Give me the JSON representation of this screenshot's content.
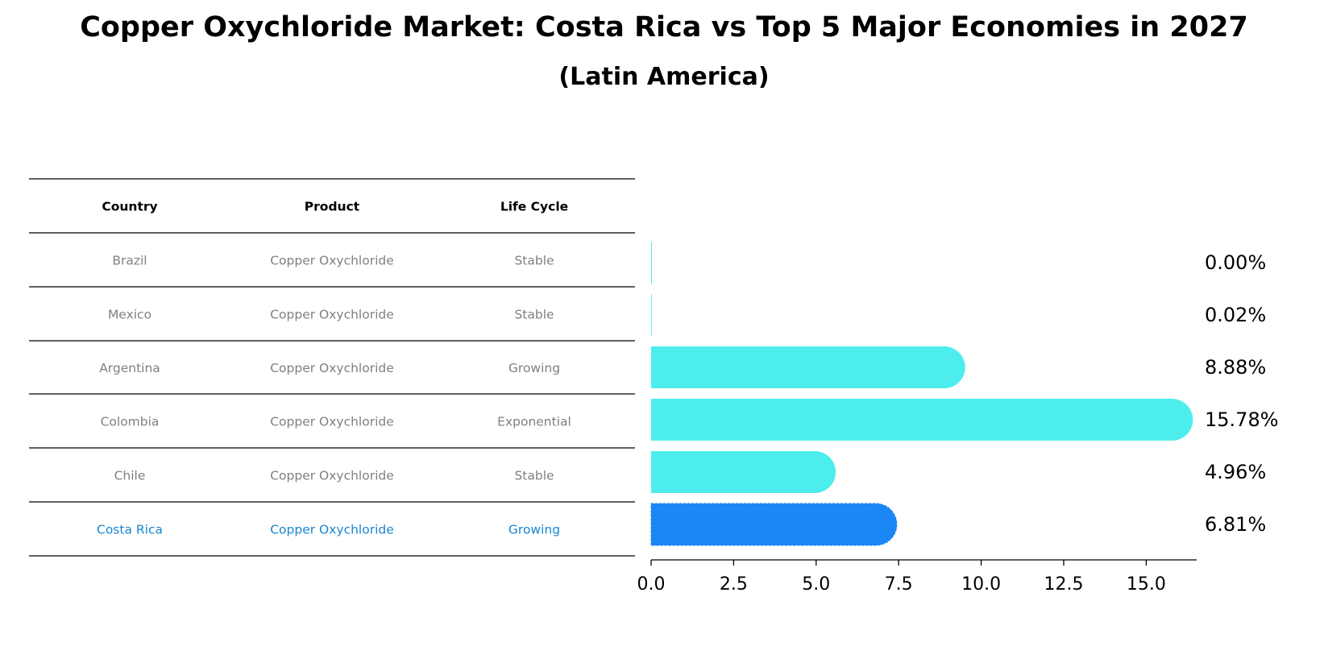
{
  "title": "Copper Oxychloride Market: Costa Rica vs Top 5 Major Economies in 2027",
  "subtitle": "(Latin America)",
  "table": {
    "headers": [
      "Country",
      "Product",
      "Life Cycle"
    ],
    "rows": [
      {
        "country": "Brazil",
        "product": "Copper Oxychloride",
        "life_cycle": "Stable",
        "highlight": false
      },
      {
        "country": "Mexico",
        "product": "Copper Oxychloride",
        "life_cycle": "Stable",
        "highlight": false
      },
      {
        "country": "Argentina",
        "product": "Copper Oxychloride",
        "life_cycle": "Growing",
        "highlight": false
      },
      {
        "country": "Colombia",
        "product": "Copper Oxychloride",
        "life_cycle": "Exponential",
        "highlight": false
      },
      {
        "country": "Chile",
        "product": "Copper Oxychloride",
        "life_cycle": "Stable",
        "highlight": false
      },
      {
        "country": "Costa Rica",
        "product": "Copper Oxychloride",
        "life_cycle": "Growing",
        "highlight": true
      }
    ]
  },
  "chart_data": {
    "type": "bar",
    "orientation": "horizontal",
    "categories": [
      "Brazil",
      "Mexico",
      "Argentina",
      "Colombia",
      "Chile",
      "Costa Rica"
    ],
    "values": [
      0.0,
      0.02,
      8.88,
      15.78,
      4.96,
      6.81
    ],
    "value_labels": [
      "0.00%",
      "0.02%",
      "8.88%",
      "15.78%",
      "4.96%",
      "6.81%"
    ],
    "xlim": [
      0,
      16.6
    ],
    "xticks": [
      0.0,
      2.5,
      5.0,
      7.5,
      10.0,
      12.5,
      15.0
    ],
    "xtick_labels": [
      "0.0",
      "2.5",
      "5.0",
      "7.5",
      "10.0",
      "12.5",
      "15.0"
    ],
    "grid": false,
    "colors": {
      "default": "#4deded",
      "highlight": "#1a87f5"
    },
    "highlight_category": "Costa Rica"
  }
}
